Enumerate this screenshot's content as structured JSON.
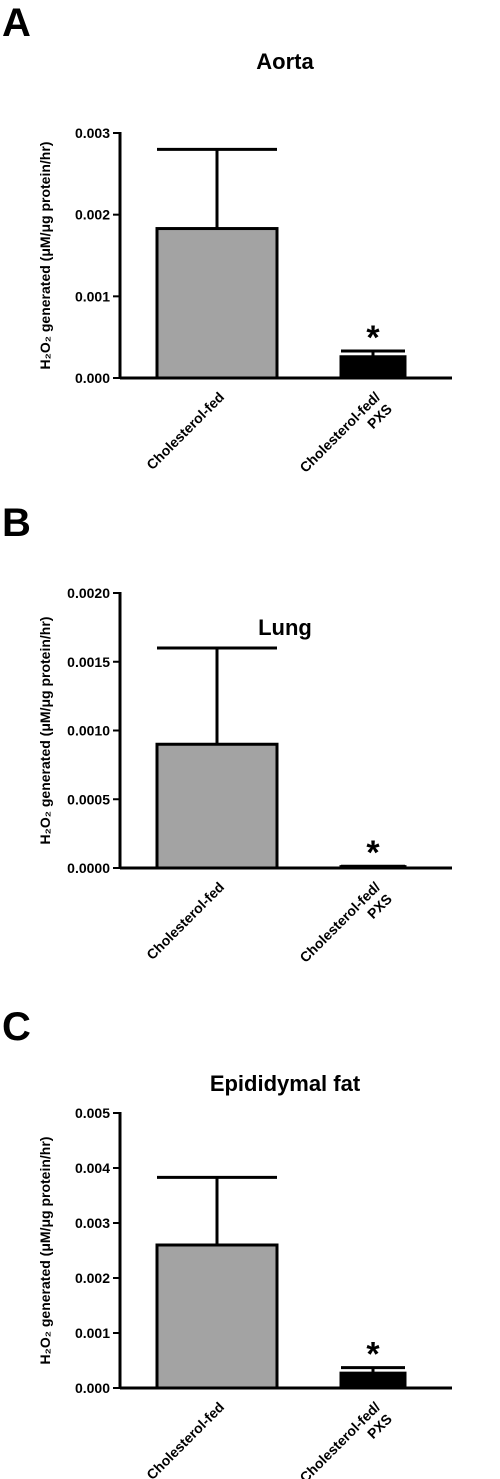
{
  "chart_data": [
    {
      "type": "bar",
      "panel": "A",
      "title": "Aorta",
      "ylabel": "H₂O₂ generated (μM/μg protein/hr)",
      "categories": [
        "Cholesterol-fed",
        "Cholesterol-fed/\nPXS"
      ],
      "values": [
        0.00183,
        0.00026
      ],
      "errors": [
        0.00097,
        7e-05
      ],
      "significance_labels": [
        null,
        "*"
      ],
      "colors": [
        "#a3a3a3",
        "#000000"
      ],
      "ylim": [
        0,
        0.003
      ],
      "yticks": [
        {
          "value": 0,
          "label": "0.000"
        },
        0.001,
        0.002,
        0.003
      ]
    },
    {
      "type": "bar",
      "panel": "B",
      "title": "Lung",
      "ylabel": "H₂O₂ generated (μM/μg protein/hr)",
      "categories": [
        "Cholesterol-fed",
        "Cholesterol-fed/\nPXS"
      ],
      "values": [
        0.0009,
        1e-05
      ],
      "errors": [
        0.0007,
        3e-06
      ],
      "significance_labels": [
        null,
        "*"
      ],
      "colors": [
        "#a3a3a3",
        "#000000"
      ],
      "ylim": [
        0,
        0.002
      ],
      "yticks": [
        {
          "value": 0,
          "label": "0.0000"
        },
        0.0005,
        {
          "value": 0.001,
          "label": "0.0010"
        },
        0.0015,
        {
          "value": 0.002,
          "label": "0.0020"
        }
      ]
    },
    {
      "type": "bar",
      "panel": "C",
      "title": "Epididymal fat",
      "ylabel": "H₂O₂ generated (μM/μg protein/hr)",
      "categories": [
        "Cholesterol-fed",
        "Cholesterol-fed/\nPXS"
      ],
      "values": [
        0.0026,
        0.00027
      ],
      "errors": [
        0.00123,
        0.0001
      ],
      "significance_labels": [
        null,
        "*"
      ],
      "colors": [
        "#a3a3a3",
        "#000000"
      ],
      "ylim": [
        0,
        0.005
      ],
      "yticks": [
        {
          "value": 0,
          "label": "0.000"
        },
        0.001,
        0.002,
        0.003,
        0.004,
        0.005
      ]
    }
  ]
}
